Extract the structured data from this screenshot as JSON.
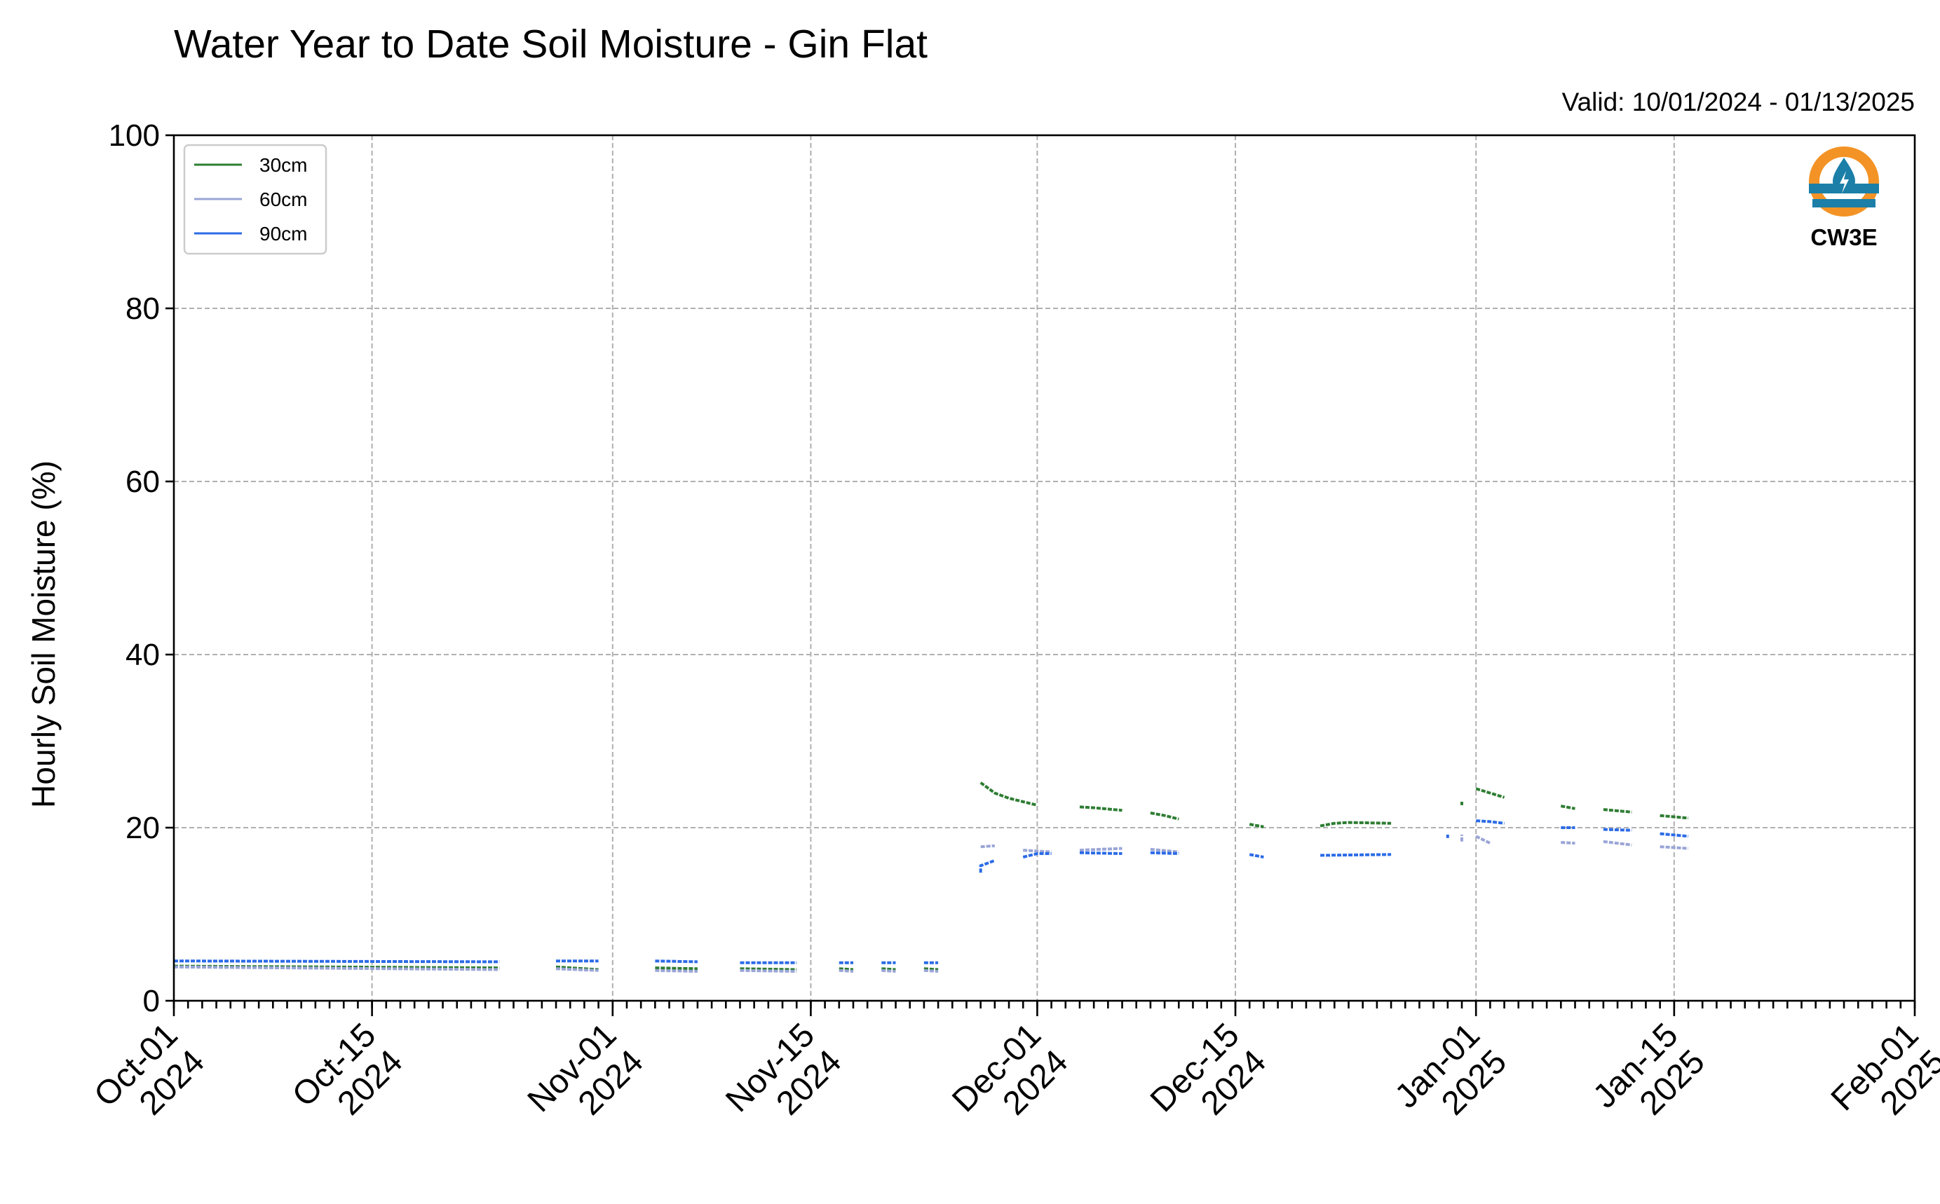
{
  "chart_data": {
    "type": "line",
    "title": "Water Year to Date Soil Moisture - Gin Flat",
    "subtitle": "Valid: 10/01/2024 - 01/13/2025",
    "xlabel": "",
    "ylabel": "Hourly Soil Moisture (%)",
    "xlim": [
      "2024-10-01",
      "2025-02-01"
    ],
    "ylim": [
      0,
      100
    ],
    "yticks": [
      0,
      20,
      40,
      60,
      80,
      100
    ],
    "xticks": [
      {
        "date": "2024-10-01",
        "label": "Oct-01",
        "year": "2024"
      },
      {
        "date": "2024-10-15",
        "label": "Oct-15",
        "year": "2024"
      },
      {
        "date": "2024-11-01",
        "label": "Nov-01",
        "year": "2024"
      },
      {
        "date": "2024-11-15",
        "label": "Nov-15",
        "year": "2024"
      },
      {
        "date": "2024-12-01",
        "label": "Dec-01",
        "year": "2024"
      },
      {
        "date": "2024-12-15",
        "label": "Dec-15",
        "year": "2024"
      },
      {
        "date": "2025-01-01",
        "label": "Jan-01",
        "year": "2025"
      },
      {
        "date": "2025-01-15",
        "label": "Jan-15",
        "year": "2025"
      },
      {
        "date": "2025-02-01",
        "label": "Feb-01",
        "year": "2025"
      }
    ],
    "grid": true,
    "legend": "top-left",
    "series": [
      {
        "name": "30cm",
        "color": "#2e7d32",
        "segments": [
          [
            [
              "2024-10-01",
              4.0
            ],
            [
              "2024-10-24",
              3.8
            ]
          ],
          [
            [
              "2024-10-28",
              3.9
            ],
            [
              "2024-10-31",
              3.6
            ]
          ],
          [
            [
              "2024-11-04",
              3.8
            ],
            [
              "2024-11-07",
              3.7
            ]
          ],
          [
            [
              "2024-11-10",
              3.7
            ],
            [
              "2024-11-14",
              3.6
            ]
          ],
          [
            [
              "2024-11-17",
              3.7
            ],
            [
              "2024-11-18",
              3.6
            ]
          ],
          [
            [
              "2024-11-20",
              3.7
            ],
            [
              "2024-11-21",
              3.6
            ]
          ],
          [
            [
              "2024-11-23",
              3.7
            ],
            [
              "2024-11-24",
              3.6
            ]
          ],
          [
            [
              "2024-11-27",
              25.2
            ],
            [
              "2024-11-28",
              24.0
            ],
            [
              "2024-11-29",
              23.4
            ],
            [
              "2024-11-30",
              23.0
            ],
            [
              "2024-12-01",
              22.6
            ]
          ],
          [
            [
              "2024-12-04",
              22.4
            ],
            [
              "2024-12-05",
              22.3
            ],
            [
              "2024-12-07",
              22.0
            ]
          ],
          [
            [
              "2024-12-09",
              21.7
            ],
            [
              "2024-12-10",
              21.4
            ],
            [
              "2024-12-11",
              21.0
            ]
          ],
          [
            [
              "2024-12-16",
              20.4
            ],
            [
              "2024-12-17",
              20.1
            ]
          ],
          [
            [
              "2024-12-21",
              20.2
            ],
            [
              "2024-12-22",
              20.5
            ],
            [
              "2024-12-23",
              20.6
            ],
            [
              "2024-12-26",
              20.5
            ]
          ],
          [
            [
              "2024-12-31",
              23.0
            ],
            [
              "2024-12-31",
              22.6
            ]
          ],
          [
            [
              "2025-01-01",
              24.5
            ],
            [
              "2025-01-02",
              24.0
            ],
            [
              "2025-01-03",
              23.5
            ]
          ],
          [
            [
              "2025-01-07",
              22.5
            ],
            [
              "2025-01-08",
              22.2
            ]
          ],
          [
            [
              "2025-01-10",
              22.1
            ],
            [
              "2025-01-12",
              21.8
            ]
          ],
          [
            [
              "2025-01-14",
              21.4
            ],
            [
              "2025-01-16",
              21.1
            ]
          ]
        ]
      },
      {
        "name": "60cm",
        "color": "#9aa5d6",
        "segments": [
          [
            [
              "2024-10-01",
              3.9
            ],
            [
              "2024-10-24",
              3.6
            ]
          ],
          [
            [
              "2024-10-28",
              3.7
            ],
            [
              "2024-10-31",
              3.5
            ]
          ],
          [
            [
              "2024-11-04",
              3.5
            ],
            [
              "2024-11-07",
              3.4
            ]
          ],
          [
            [
              "2024-11-10",
              3.5
            ],
            [
              "2024-11-14",
              3.4
            ]
          ],
          [
            [
              "2024-11-17",
              3.5
            ],
            [
              "2024-11-18",
              3.4
            ]
          ],
          [
            [
              "2024-11-20",
              3.5
            ],
            [
              "2024-11-21",
              3.4
            ]
          ],
          [
            [
              "2024-11-23",
              3.5
            ],
            [
              "2024-11-24",
              3.4
            ]
          ],
          [
            [
              "2024-11-27",
              17.8
            ],
            [
              "2024-11-28",
              17.9
            ]
          ],
          [
            [
              "2024-11-30",
              17.4
            ],
            [
              "2024-12-02",
              17.2
            ]
          ],
          [
            [
              "2024-12-04",
              17.4
            ],
            [
              "2024-12-07",
              17.6
            ]
          ],
          [
            [
              "2024-12-09",
              17.5
            ],
            [
              "2024-12-11",
              17.2
            ]
          ],
          [
            [
              "2024-12-31",
              18.4
            ],
            [
              "2024-12-31",
              19.2
            ]
          ],
          [
            [
              "2025-01-01",
              19.0
            ],
            [
              "2025-01-02",
              18.2
            ]
          ],
          [
            [
              "2025-01-07",
              18.3
            ],
            [
              "2025-01-08",
              18.2
            ]
          ],
          [
            [
              "2025-01-10",
              18.4
            ],
            [
              "2025-01-12",
              18.0
            ]
          ],
          [
            [
              "2025-01-14",
              17.8
            ],
            [
              "2025-01-16",
              17.6
            ]
          ]
        ]
      },
      {
        "name": "90cm",
        "color": "#2b6be6",
        "segments": [
          [
            [
              "2024-10-01",
              4.6
            ],
            [
              "2024-10-24",
              4.5
            ]
          ],
          [
            [
              "2024-10-28",
              4.6
            ],
            [
              "2024-10-31",
              4.6
            ]
          ],
          [
            [
              "2024-11-04",
              4.6
            ],
            [
              "2024-11-07",
              4.5
            ]
          ],
          [
            [
              "2024-11-10",
              4.4
            ],
            [
              "2024-11-14",
              4.4
            ]
          ],
          [
            [
              "2024-11-17",
              4.4
            ],
            [
              "2024-11-18",
              4.4
            ]
          ],
          [
            [
              "2024-11-20",
              4.4
            ],
            [
              "2024-11-21",
              4.4
            ]
          ],
          [
            [
              "2024-11-23",
              4.4
            ],
            [
              "2024-11-24",
              4.4
            ]
          ],
          [
            [
              "2024-11-27",
              14.8
            ],
            [
              "2024-11-27",
              15.6
            ],
            [
              "2024-11-28",
              16.2
            ]
          ],
          [
            [
              "2024-11-30",
              16.6
            ],
            [
              "2024-12-01",
              17.0
            ],
            [
              "2024-12-02",
              17.0
            ]
          ],
          [
            [
              "2024-12-04",
              17.1
            ],
            [
              "2024-12-07",
              17.0
            ]
          ],
          [
            [
              "2024-12-09",
              17.1
            ],
            [
              "2024-12-11",
              17.0
            ]
          ],
          [
            [
              "2024-12-16",
              16.9
            ],
            [
              "2024-12-17",
              16.6
            ]
          ],
          [
            [
              "2024-12-21",
              16.8
            ],
            [
              "2024-12-26",
              16.9
            ]
          ],
          [
            [
              "2024-12-30",
              19.2
            ],
            [
              "2024-12-30",
              18.8
            ]
          ],
          [
            [
              "2025-01-01",
              20.8
            ],
            [
              "2025-01-02",
              20.7
            ],
            [
              "2025-01-03",
              20.5
            ]
          ],
          [
            [
              "2025-01-07",
              20.0
            ],
            [
              "2025-01-08",
              20.0
            ]
          ],
          [
            [
              "2025-01-10",
              19.8
            ],
            [
              "2025-01-12",
              19.7
            ]
          ],
          [
            [
              "2025-01-14",
              19.3
            ],
            [
              "2025-01-16",
              19.0
            ]
          ]
        ]
      }
    ]
  },
  "logo": {
    "text": "CW3E",
    "ring_color": "#f39325",
    "band_color": "#1b7fa8",
    "drop_color": "#1b7fa8"
  }
}
